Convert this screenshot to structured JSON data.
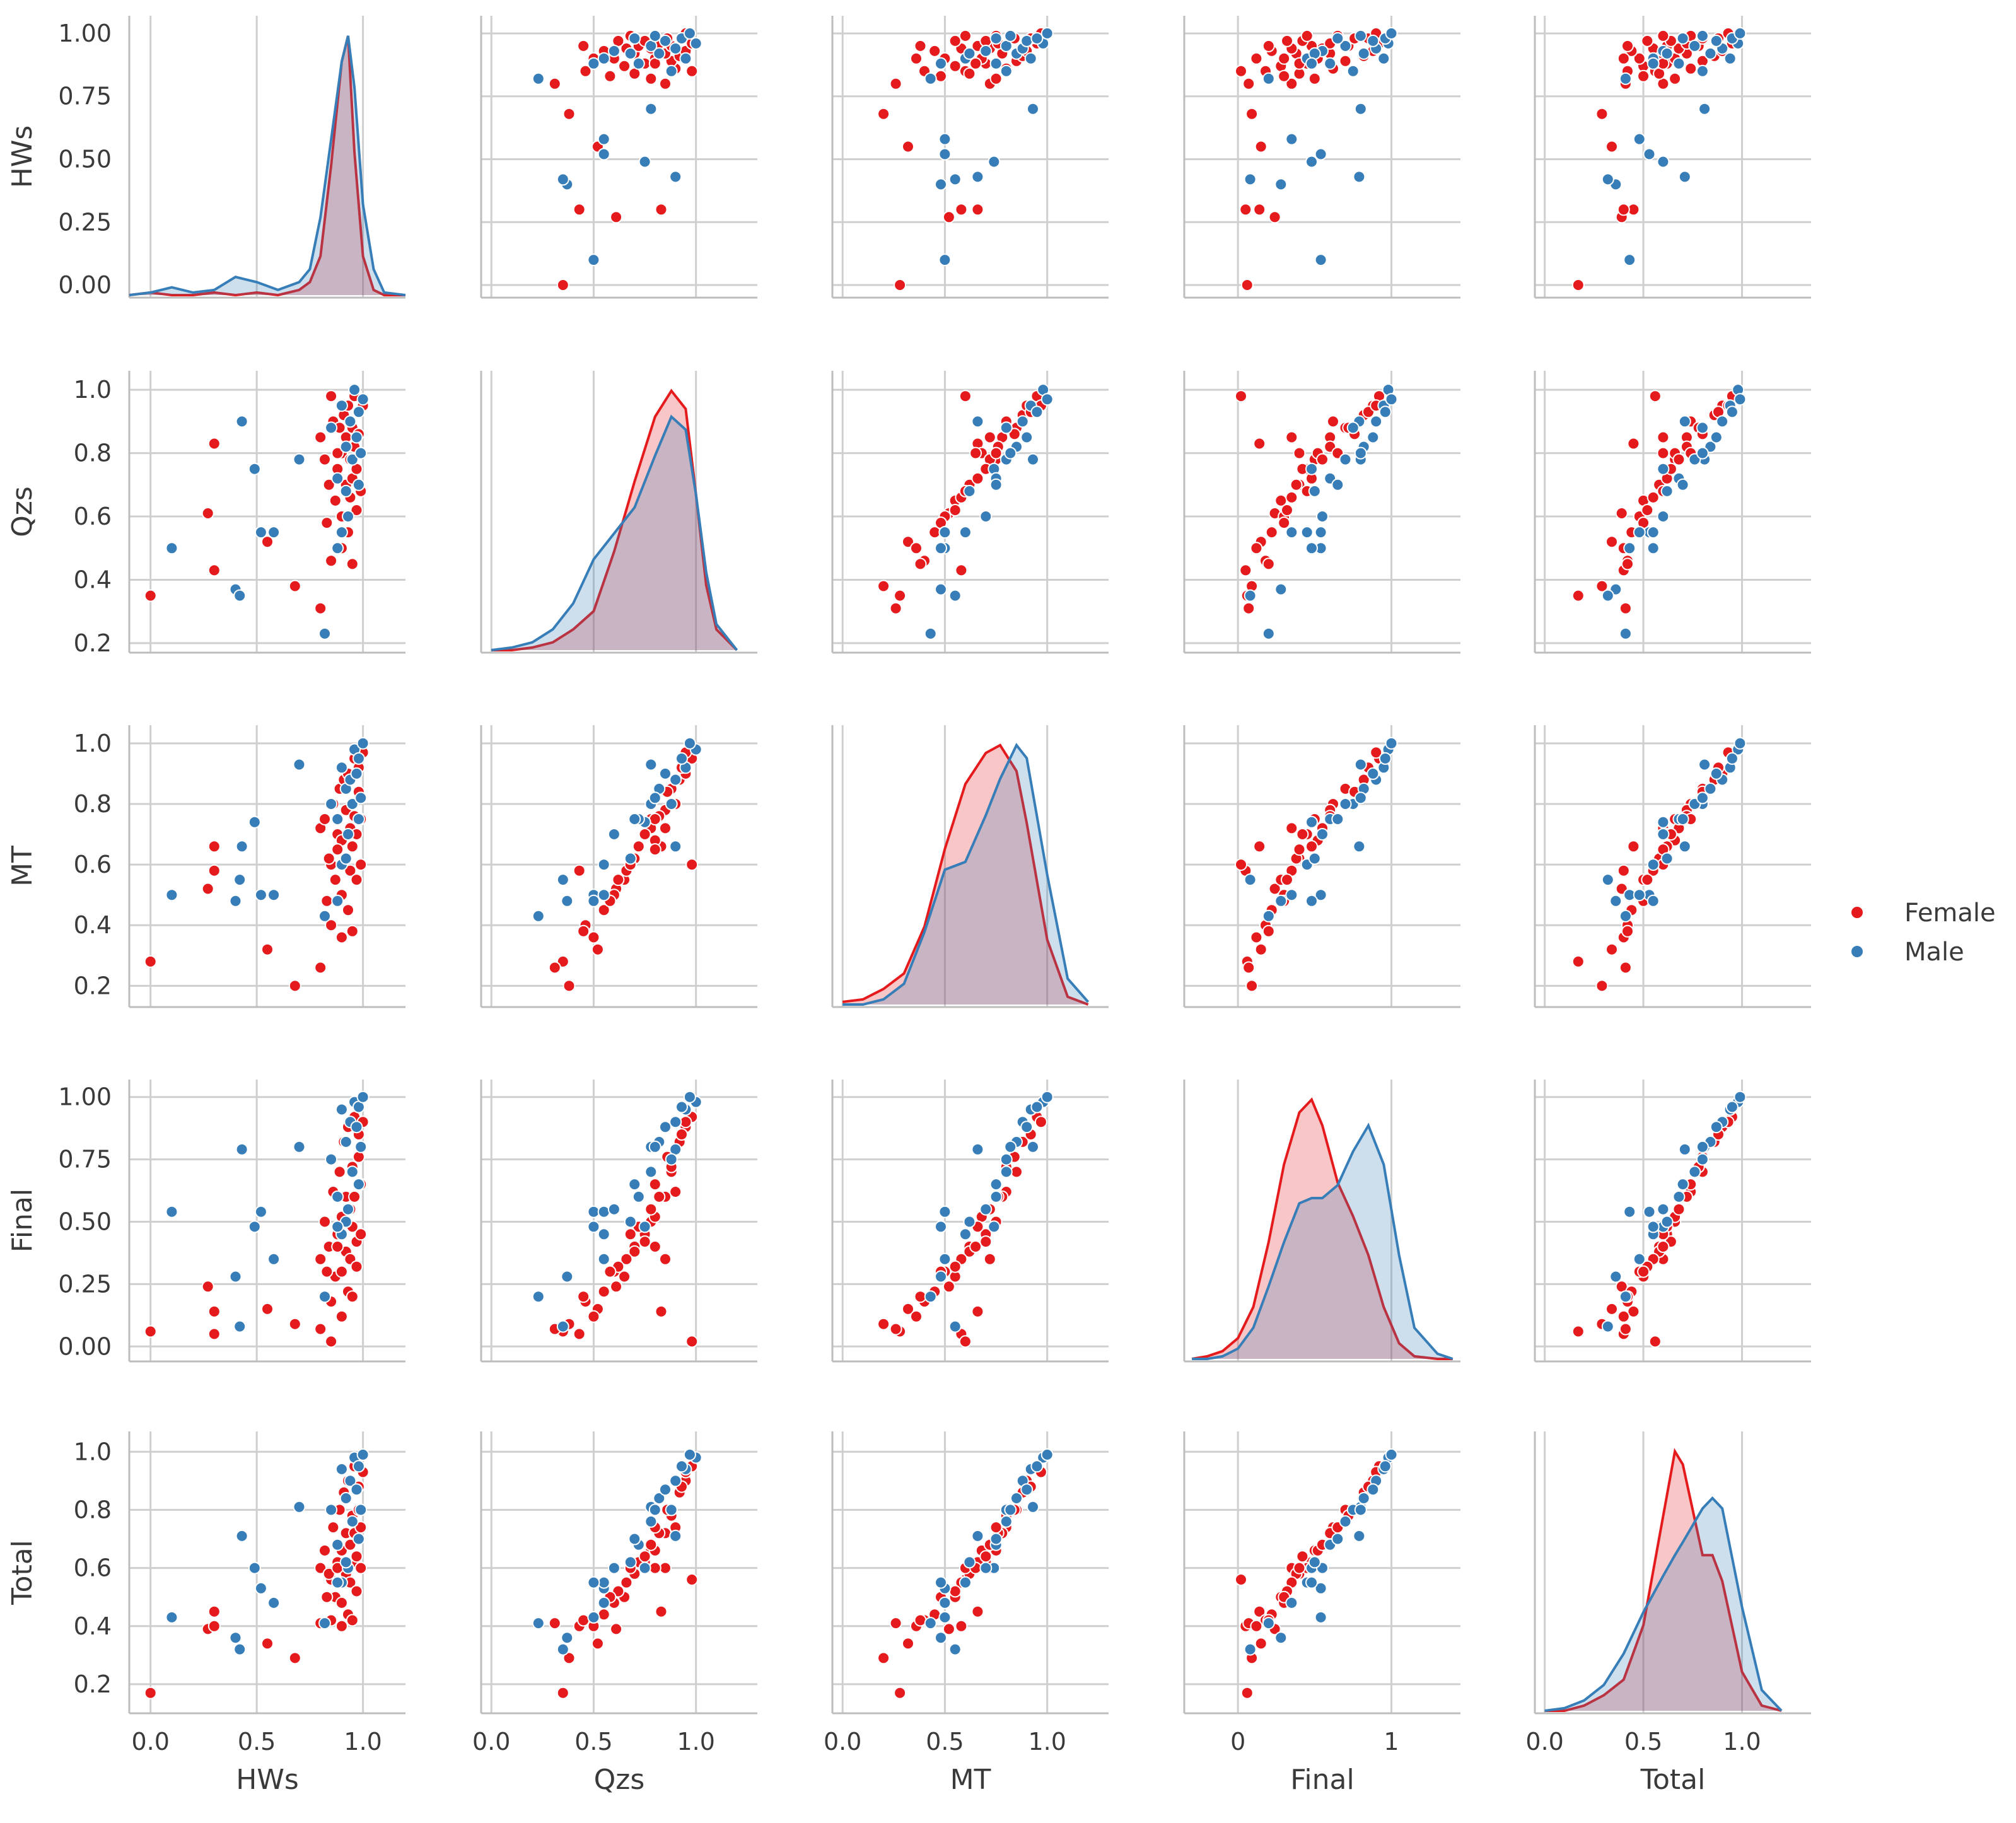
{
  "chart_data": {
    "type": "scatter",
    "title": "",
    "variables": [
      "HWs",
      "Qzs",
      "MT",
      "Final",
      "Total"
    ],
    "hue_order": [
      "Female",
      "Male"
    ],
    "colors": {
      "Female": "#e41a1c",
      "Male": "#377eb8"
    },
    "diag_type": "kde",
    "axes": {
      "HWs": {
        "lim": [
          -0.1,
          1.2
        ],
        "ticks": [
          0.0,
          0.5,
          1.0
        ],
        "tick_labels": [
          "0.0",
          "0.5",
          "1.0"
        ],
        "ylim": [
          -0.05,
          1.07
        ],
        "yticks": [
          0.0,
          0.25,
          0.5,
          0.75,
          1.0
        ],
        "ytick_labels": [
          "0.00",
          "0.25",
          "0.50",
          "0.75",
          "1.00"
        ]
      },
      "Qzs": {
        "lim": [
          -0.05,
          1.3
        ],
        "ticks": [
          0.0,
          0.5,
          1.0
        ],
        "tick_labels": [
          "0.0",
          "0.5",
          "1.0"
        ],
        "ylim": [
          0.17,
          1.06
        ],
        "yticks": [
          0.2,
          0.4,
          0.6,
          0.8,
          1.0
        ],
        "ytick_labels": [
          "0.2",
          "0.4",
          "0.6",
          "0.8",
          "1.0"
        ]
      },
      "MT": {
        "lim": [
          -0.05,
          1.3
        ],
        "ticks": [
          0.0,
          0.5,
          1.0
        ],
        "tick_labels": [
          "0.0",
          "0.5",
          "1.0"
        ],
        "ylim": [
          0.13,
          1.06
        ],
        "yticks": [
          0.2,
          0.4,
          0.6,
          0.8,
          1.0
        ],
        "ytick_labels": [
          "0.2",
          "0.4",
          "0.6",
          "0.8",
          "1.0"
        ]
      },
      "Final": {
        "lim": [
          -0.35,
          1.45
        ],
        "ticks": [
          0,
          1
        ],
        "tick_labels": [
          "0",
          "1"
        ],
        "ylim": [
          -0.06,
          1.07
        ],
        "yticks": [
          0.0,
          0.25,
          0.5,
          0.75,
          1.0
        ],
        "ytick_labels": [
          "0.00",
          "0.25",
          "0.50",
          "0.75",
          "1.00"
        ]
      },
      "Total": {
        "lim": [
          -0.05,
          1.35
        ],
        "ticks": [
          0.0,
          0.5,
          1.0
        ],
        "tick_labels": [
          "0.0",
          "0.5",
          "1.0"
        ],
        "ylim": [
          0.1,
          1.07
        ],
        "yticks": [
          0.2,
          0.4,
          0.6,
          0.8,
          1.0
        ],
        "ytick_labels": [
          "0.2",
          "0.4",
          "0.6",
          "0.8",
          "1.0"
        ]
      }
    },
    "legend": {
      "entries": [
        "Female",
        "Male"
      ],
      "location": "center-right"
    },
    "grid": true,
    "kde": {
      "HWs": {
        "x": [
          -0.1,
          0.0,
          0.1,
          0.2,
          0.3,
          0.4,
          0.5,
          0.6,
          0.7,
          0.75,
          0.8,
          0.85,
          0.9,
          0.93,
          0.96,
          1.0,
          1.05,
          1.1,
          1.2
        ],
        "Female": [
          0.0,
          0.01,
          0.0,
          0.0,
          0.01,
          0.0,
          0.01,
          0.0,
          0.02,
          0.05,
          0.15,
          0.5,
          0.9,
          1.0,
          0.55,
          0.15,
          0.02,
          0.0,
          0.0
        ],
        "Male": [
          0.0,
          0.01,
          0.03,
          0.01,
          0.02,
          0.07,
          0.05,
          0.02,
          0.05,
          0.1,
          0.3,
          0.6,
          0.9,
          1.0,
          0.8,
          0.35,
          0.1,
          0.01,
          0.0
        ]
      },
      "Qzs": {
        "x": [
          0.0,
          0.1,
          0.2,
          0.3,
          0.4,
          0.5,
          0.6,
          0.7,
          0.8,
          0.88,
          0.95,
          1.0,
          1.05,
          1.1,
          1.2
        ],
        "Female": [
          0.0,
          0.0,
          0.01,
          0.03,
          0.08,
          0.15,
          0.38,
          0.65,
          0.9,
          1.0,
          0.93,
          0.6,
          0.25,
          0.08,
          0.0
        ],
        "Male": [
          0.0,
          0.01,
          0.03,
          0.08,
          0.18,
          0.35,
          0.45,
          0.55,
          0.75,
          0.9,
          0.85,
          0.6,
          0.3,
          0.1,
          0.0
        ]
      },
      "MT": {
        "x": [
          0.0,
          0.1,
          0.2,
          0.3,
          0.4,
          0.5,
          0.6,
          0.7,
          0.77,
          0.85,
          0.9,
          1.0,
          1.1,
          1.2
        ],
        "Female": [
          0.01,
          0.02,
          0.06,
          0.12,
          0.3,
          0.6,
          0.85,
          0.97,
          1.0,
          0.9,
          0.7,
          0.25,
          0.03,
          0.0
        ],
        "Male": [
          0.0,
          0.0,
          0.02,
          0.08,
          0.28,
          0.52,
          0.55,
          0.73,
          0.87,
          1.0,
          0.95,
          0.5,
          0.1,
          0.01
        ]
      },
      "Final": {
        "x": [
          -0.3,
          -0.2,
          -0.1,
          0.0,
          0.1,
          0.2,
          0.3,
          0.4,
          0.48,
          0.55,
          0.65,
          0.75,
          0.85,
          0.95,
          1.05,
          1.15,
          1.3,
          1.4
        ],
        "Female": [
          0.0,
          0.01,
          0.03,
          0.08,
          0.2,
          0.45,
          0.75,
          0.95,
          1.0,
          0.9,
          0.68,
          0.55,
          0.4,
          0.2,
          0.06,
          0.01,
          0.0,
          0.0
        ],
        "Male": [
          0.0,
          0.0,
          0.01,
          0.04,
          0.12,
          0.28,
          0.45,
          0.6,
          0.62,
          0.62,
          0.67,
          0.8,
          0.9,
          0.75,
          0.4,
          0.12,
          0.02,
          0.0
        ]
      },
      "Total": {
        "x": [
          0.0,
          0.1,
          0.2,
          0.3,
          0.4,
          0.5,
          0.6,
          0.66,
          0.7,
          0.8,
          0.85,
          0.9,
          1.0,
          1.1,
          1.2
        ],
        "Female": [
          0.0,
          0.0,
          0.02,
          0.06,
          0.12,
          0.33,
          0.75,
          1.0,
          0.95,
          0.6,
          0.6,
          0.5,
          0.15,
          0.02,
          0.0
        ],
        "Male": [
          0.0,
          0.01,
          0.04,
          0.1,
          0.22,
          0.38,
          0.52,
          0.6,
          0.65,
          0.78,
          0.82,
          0.78,
          0.4,
          0.08,
          0.0
        ]
      }
    },
    "points": {
      "Female": [
        [
          0.0,
          0.35,
          0.28,
          0.06,
          0.17
        ],
        [
          0.3,
          0.83,
          0.66,
          0.14,
          0.45
        ],
        [
          0.27,
          0.61,
          0.52,
          0.24,
          0.39
        ],
        [
          0.3,
          0.43,
          0.58,
          0.05,
          0.4
        ],
        [
          0.55,
          0.52,
          0.32,
          0.15,
          0.34
        ],
        [
          0.68,
          0.38,
          0.2,
          0.09,
          0.29
        ],
        [
          0.85,
          0.98,
          0.6,
          0.02,
          0.56
        ],
        [
          0.8,
          0.31,
          0.26,
          0.07,
          0.41
        ],
        [
          0.8,
          0.85,
          0.72,
          0.35,
          0.6
        ],
        [
          0.82,
          0.78,
          0.75,
          0.5,
          0.66
        ],
        [
          0.84,
          0.7,
          0.62,
          0.4,
          0.58
        ],
        [
          0.86,
          0.9,
          0.8,
          0.62,
          0.74
        ],
        [
          0.87,
          0.65,
          0.55,
          0.28,
          0.5
        ],
        [
          0.88,
          0.75,
          0.7,
          0.45,
          0.62
        ],
        [
          0.89,
          0.88,
          0.85,
          0.7,
          0.8
        ],
        [
          0.9,
          0.6,
          0.5,
          0.3,
          0.48
        ],
        [
          0.9,
          0.8,
          0.68,
          0.52,
          0.66
        ],
        [
          0.91,
          0.92,
          0.88,
          0.82,
          0.86
        ],
        [
          0.92,
          0.7,
          0.62,
          0.38,
          0.58
        ],
        [
          0.92,
          0.85,
          0.78,
          0.6,
          0.72
        ],
        [
          0.93,
          0.55,
          0.45,
          0.22,
          0.44
        ],
        [
          0.93,
          0.95,
          0.9,
          0.88,
          0.9
        ],
        [
          0.94,
          0.78,
          0.72,
          0.55,
          0.68
        ],
        [
          0.94,
          0.66,
          0.58,
          0.35,
          0.55
        ],
        [
          0.95,
          0.88,
          0.8,
          0.72,
          0.78
        ],
        [
          0.95,
          0.72,
          0.66,
          0.48,
          0.62
        ],
        [
          0.96,
          0.82,
          0.76,
          0.6,
          0.72
        ],
        [
          0.96,
          0.98,
          0.95,
          0.92,
          0.95
        ],
        [
          0.97,
          0.62,
          0.55,
          0.32,
          0.52
        ],
        [
          0.97,
          0.75,
          0.7,
          0.42,
          0.64
        ],
        [
          0.98,
          0.86,
          0.84,
          0.76,
          0.8
        ],
        [
          0.98,
          0.93,
          0.92,
          0.85,
          0.88
        ],
        [
          0.99,
          0.68,
          0.6,
          0.45,
          0.6
        ],
        [
          0.99,
          0.8,
          0.75,
          0.65,
          0.74
        ],
        [
          1.0,
          0.95,
          0.97,
          0.9,
          0.93
        ],
        [
          0.85,
          0.46,
          0.4,
          0.18,
          0.42
        ],
        [
          0.83,
          0.58,
          0.48,
          0.3,
          0.5
        ],
        [
          0.9,
          0.5,
          0.36,
          0.12,
          0.4
        ],
        [
          0.95,
          0.45,
          0.38,
          0.2,
          0.42
        ],
        [
          0.88,
          0.8,
          0.65,
          0.4,
          0.6
        ]
      ],
      "Male": [
        [
          0.1,
          0.5,
          0.5,
          0.54,
          0.43
        ],
        [
          0.4,
          0.37,
          0.48,
          0.28,
          0.36
        ],
        [
          0.42,
          0.35,
          0.55,
          0.08,
          0.32
        ],
        [
          0.43,
          0.9,
          0.66,
          0.79,
          0.71
        ],
        [
          0.49,
          0.75,
          0.74,
          0.48,
          0.6
        ],
        [
          0.52,
          0.55,
          0.5,
          0.54,
          0.53
        ],
        [
          0.58,
          0.55,
          0.5,
          0.35,
          0.48
        ],
        [
          0.7,
          0.78,
          0.93,
          0.8,
          0.81
        ],
        [
          0.82,
          0.23,
          0.43,
          0.2,
          0.41
        ],
        [
          0.85,
          0.88,
          0.8,
          0.75,
          0.8
        ],
        [
          0.88,
          0.72,
          0.75,
          0.6,
          0.68
        ],
        [
          0.9,
          0.95,
          0.92,
          0.95,
          0.94
        ],
        [
          0.92,
          0.82,
          0.85,
          0.82,
          0.84
        ],
        [
          0.93,
          0.6,
          0.7,
          0.55,
          0.6
        ],
        [
          0.94,
          0.9,
          0.88,
          0.9,
          0.9
        ],
        [
          0.95,
          0.78,
          0.8,
          0.7,
          0.76
        ],
        [
          0.96,
          1.0,
          0.98,
          0.98,
          0.98
        ],
        [
          0.97,
          0.85,
          0.9,
          0.88,
          0.87
        ],
        [
          0.98,
          0.7,
          0.75,
          0.65,
          0.7
        ],
        [
          0.98,
          0.93,
          0.95,
          0.96,
          0.95
        ],
        [
          0.99,
          0.8,
          0.82,
          0.8,
          0.8
        ],
        [
          1.0,
          0.97,
          1.0,
          1.0,
          0.99
        ],
        [
          0.9,
          0.55,
          0.6,
          0.45,
          0.55
        ],
        [
          0.92,
          0.68,
          0.62,
          0.5,
          0.62
        ],
        [
          0.88,
          0.5,
          0.48,
          0.48,
          0.55
        ]
      ]
    }
  }
}
